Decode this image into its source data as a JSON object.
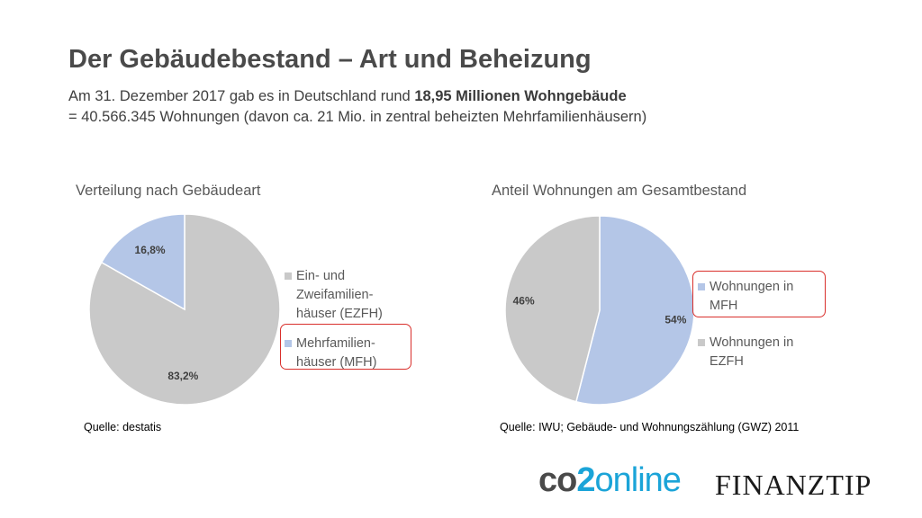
{
  "slide": {
    "title": "Der Gebäudebestand – Art und Beheizung",
    "subtitle_line1_prefix": "Am 31. Dezember 2017 gab es in Deutschland rund ",
    "subtitle_line1_bold": "18,95 Millionen Wohngebäude",
    "subtitle_line2": "= 40.566.345 Wohnungen (davon ca. 21 Mio. in zentral beheizten Mehrfamilienhäusern)"
  },
  "chart_data": [
    {
      "type": "pie",
      "title": "Verteilung nach Gebäudeart",
      "categories": [
        "Ein- und Zweifamilien-häuser (EZFH)",
        "Mehrfamilien-häuser (MFH)"
      ],
      "values": [
        83.2,
        16.8
      ],
      "value_labels": [
        "83,2%",
        "16,8%"
      ],
      "colors": [
        "#c9c9c9",
        "#b4c6e7"
      ],
      "legend": {
        "placement": "right",
        "items": [
          {
            "lines": [
              "Ein- und",
              "Zweifamilien-",
              "häuser (EZFH)"
            ],
            "color": "#c9c9c9",
            "highlighted": false
          },
          {
            "lines": [
              "Mehrfamilien-",
              "häuser (MFH)"
            ],
            "color": "#b4c6e7",
            "highlighted": true
          }
        ]
      },
      "source": "Quelle: destatis"
    },
    {
      "type": "pie",
      "title": "Anteil Wohnungen am Gesamtbestand",
      "categories": [
        "Wohnungen in MFH",
        "Wohnungen in EZFH"
      ],
      "values": [
        54,
        46
      ],
      "value_labels": [
        "54%",
        "46%"
      ],
      "colors": [
        "#b4c6e7",
        "#c9c9c9"
      ],
      "legend": {
        "placement": "right",
        "items": [
          {
            "lines": [
              "Wohnungen in",
              "MFH"
            ],
            "color": "#b4c6e7",
            "highlighted": true
          },
          {
            "lines": [
              "Wohnungen in",
              "EZFH"
            ],
            "color": "#c9c9c9",
            "highlighted": false
          }
        ]
      },
      "source": "Quelle: IWU; Gebäude- und Wohnungszählung (GWZ) 2011"
    }
  ],
  "logos": {
    "co2online_part1": "co",
    "co2online_part2": "2",
    "co2online_part3": "online",
    "finanztip": "FINANZTIP",
    "co2online_color": "#1ba4d8"
  }
}
